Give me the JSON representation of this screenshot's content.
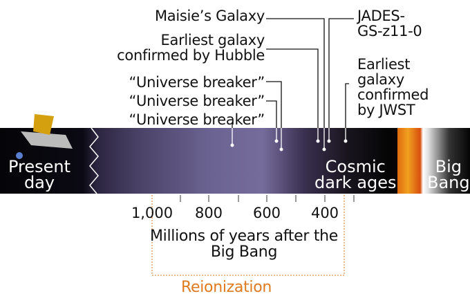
{
  "labels": {
    "maisie": "Maisie’s Galaxy",
    "jades": [
      "JADES-",
      "GS-z11-0"
    ],
    "hubble": [
      "Earliest galaxy",
      "confirmed by Hubble"
    ],
    "universe_breakers": [
      "“Universe breaker”",
      "“Universe breaker”",
      "“Universe breaker”"
    ],
    "jwst": [
      "Earliest",
      "galaxy",
      "confirmed",
      "by JWST"
    ]
  },
  "band": {
    "present": [
      "Present",
      "day"
    ],
    "dark_ages": [
      "Cosmic",
      "dark ages"
    ],
    "big_bang": [
      "Big",
      "Bang"
    ]
  },
  "axis": {
    "ticks": [
      "1,000",
      "800",
      "600",
      "400"
    ],
    "title": [
      "Millions of years after the",
      "Big Bang"
    ]
  },
  "reionization": {
    "label": "Reionization",
    "color": "#e07a1f"
  }
}
